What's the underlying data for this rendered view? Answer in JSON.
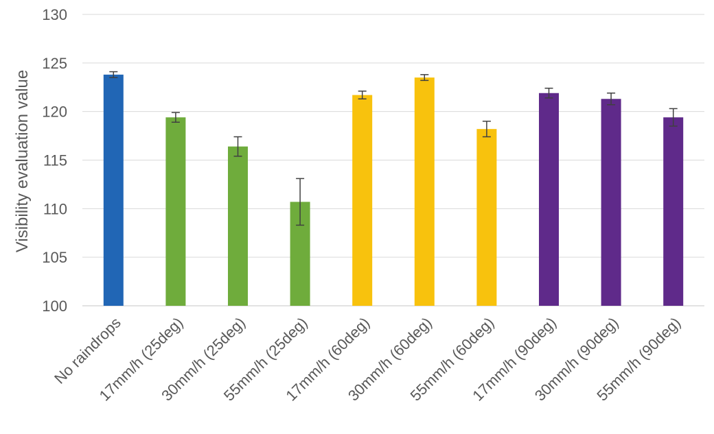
{
  "chart_data": {
    "type": "bar",
    "title": "",
    "xlabel": "",
    "ylabel": "Visibility evaluation value",
    "ylim": [
      100,
      130
    ],
    "yticks": [
      100,
      105,
      110,
      115,
      120,
      125,
      130
    ],
    "grid": true,
    "legend": "none",
    "categories": [
      "No raindrops",
      "17mm/h (25deg)",
      "30mm/h (25deg)",
      "55mm/h (25deg)",
      "17mm/h (60deg)",
      "30mm/h (60deg)",
      "55mm/h (60deg)",
      "17mm/h (90deg)",
      "30mm/h (90deg)",
      "55mm/h (90deg)"
    ],
    "values": [
      123.8,
      119.4,
      116.4,
      110.7,
      121.7,
      123.5,
      118.2,
      121.9,
      121.3,
      119.4
    ],
    "error": [
      0.3,
      0.5,
      1.0,
      2.4,
      0.4,
      0.3,
      0.8,
      0.5,
      0.6,
      0.9
    ],
    "colors": [
      "#2166b5",
      "#6fac3c",
      "#6fac3c",
      "#6fac3c",
      "#f8c20d",
      "#f8c20d",
      "#f8c20d",
      "#5f2a8a",
      "#5f2a8a",
      "#5f2a8a"
    ]
  }
}
